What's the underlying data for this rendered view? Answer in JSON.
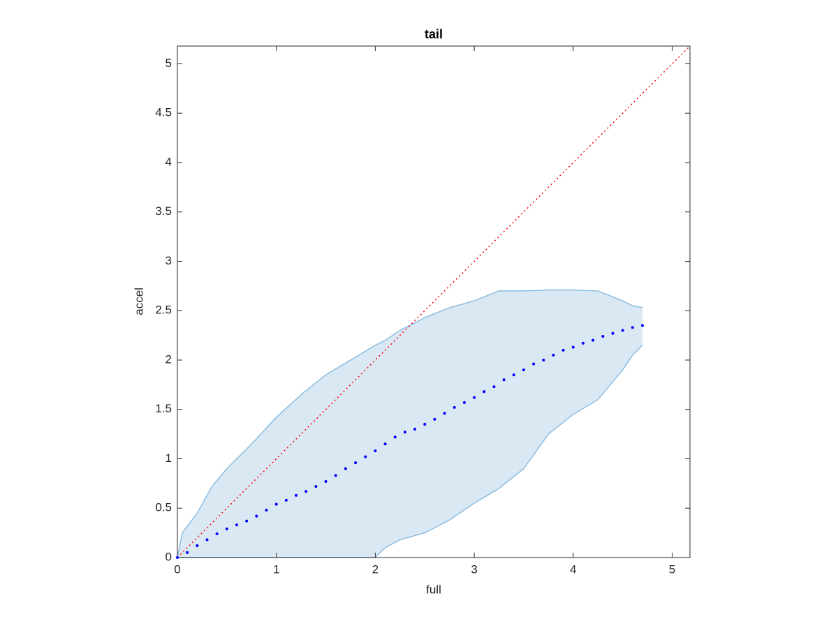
{
  "chart_data": {
    "type": "scatter",
    "title": "tail",
    "xlabel": "full",
    "ylabel": "accel",
    "xlim": [
      0,
      5.18
    ],
    "ylim": [
      0,
      5.18
    ],
    "xticks": [
      0,
      1,
      2,
      3,
      4,
      5
    ],
    "yticks": [
      0,
      0.5,
      1,
      1.5,
      2,
      2.5,
      3,
      3.5,
      4,
      4.5,
      5
    ],
    "band": {
      "color": "#dae8f4",
      "edge_color": "#8cbde0",
      "x": [
        0,
        0.05,
        0.2,
        0.35,
        0.5,
        0.75,
        1,
        1.25,
        1.5,
        1.75,
        2,
        2.1,
        2.25,
        2.5,
        2.75,
        3,
        3.25,
        3.5,
        3.75,
        4,
        4.25,
        4.5,
        4.6,
        4.7
      ],
      "upper": [
        0,
        0.25,
        0.45,
        0.72,
        0.9,
        1.15,
        1.42,
        1.65,
        1.85,
        2.0,
        2.15,
        2.2,
        2.3,
        2.43,
        2.53,
        2.6,
        2.7,
        2.7,
        2.71,
        2.71,
        2.7,
        2.6,
        2.55,
        2.53
      ],
      "lower": [
        0,
        0,
        0,
        0,
        0,
        0,
        0,
        0,
        0,
        0,
        0,
        0.1,
        0.18,
        0.25,
        0.38,
        0.55,
        0.7,
        0.9,
        1.25,
        1.45,
        1.6,
        1.9,
        2.05,
        2.15
      ]
    },
    "series": [
      {
        "color": "#0000ff",
        "x": [
          0,
          0.1,
          0.2,
          0.3,
          0.4,
          0.5,
          0.6,
          0.7,
          0.8,
          0.9,
          1.0,
          1.1,
          1.2,
          1.3,
          1.4,
          1.5,
          1.6,
          1.7,
          1.8,
          1.9,
          2.0,
          2.1,
          2.2,
          2.3,
          2.4,
          2.5,
          2.6,
          2.7,
          2.8,
          2.9,
          3.0,
          3.1,
          3.2,
          3.3,
          3.4,
          3.5,
          3.6,
          3.7,
          3.8,
          3.9,
          4.0,
          4.1,
          4.2,
          4.3,
          4.4,
          4.5,
          4.6,
          4.7
        ],
        "values": [
          0,
          0.05,
          0.12,
          0.18,
          0.24,
          0.29,
          0.33,
          0.37,
          0.42,
          0.48,
          0.54,
          0.58,
          0.63,
          0.67,
          0.72,
          0.77,
          0.83,
          0.9,
          0.96,
          1.02,
          1.08,
          1.15,
          1.22,
          1.27,
          1.3,
          1.35,
          1.4,
          1.46,
          1.52,
          1.57,
          1.62,
          1.68,
          1.73,
          1.8,
          1.85,
          1.9,
          1.96,
          2.0,
          2.05,
          2.1,
          2.13,
          2.17,
          2.2,
          2.24,
          2.27,
          2.3,
          2.33,
          2.35
        ]
      }
    ],
    "reference_line": {
      "color": "#ff0000",
      "x": [
        0,
        5.18
      ],
      "values": [
        0,
        5.18
      ]
    }
  }
}
